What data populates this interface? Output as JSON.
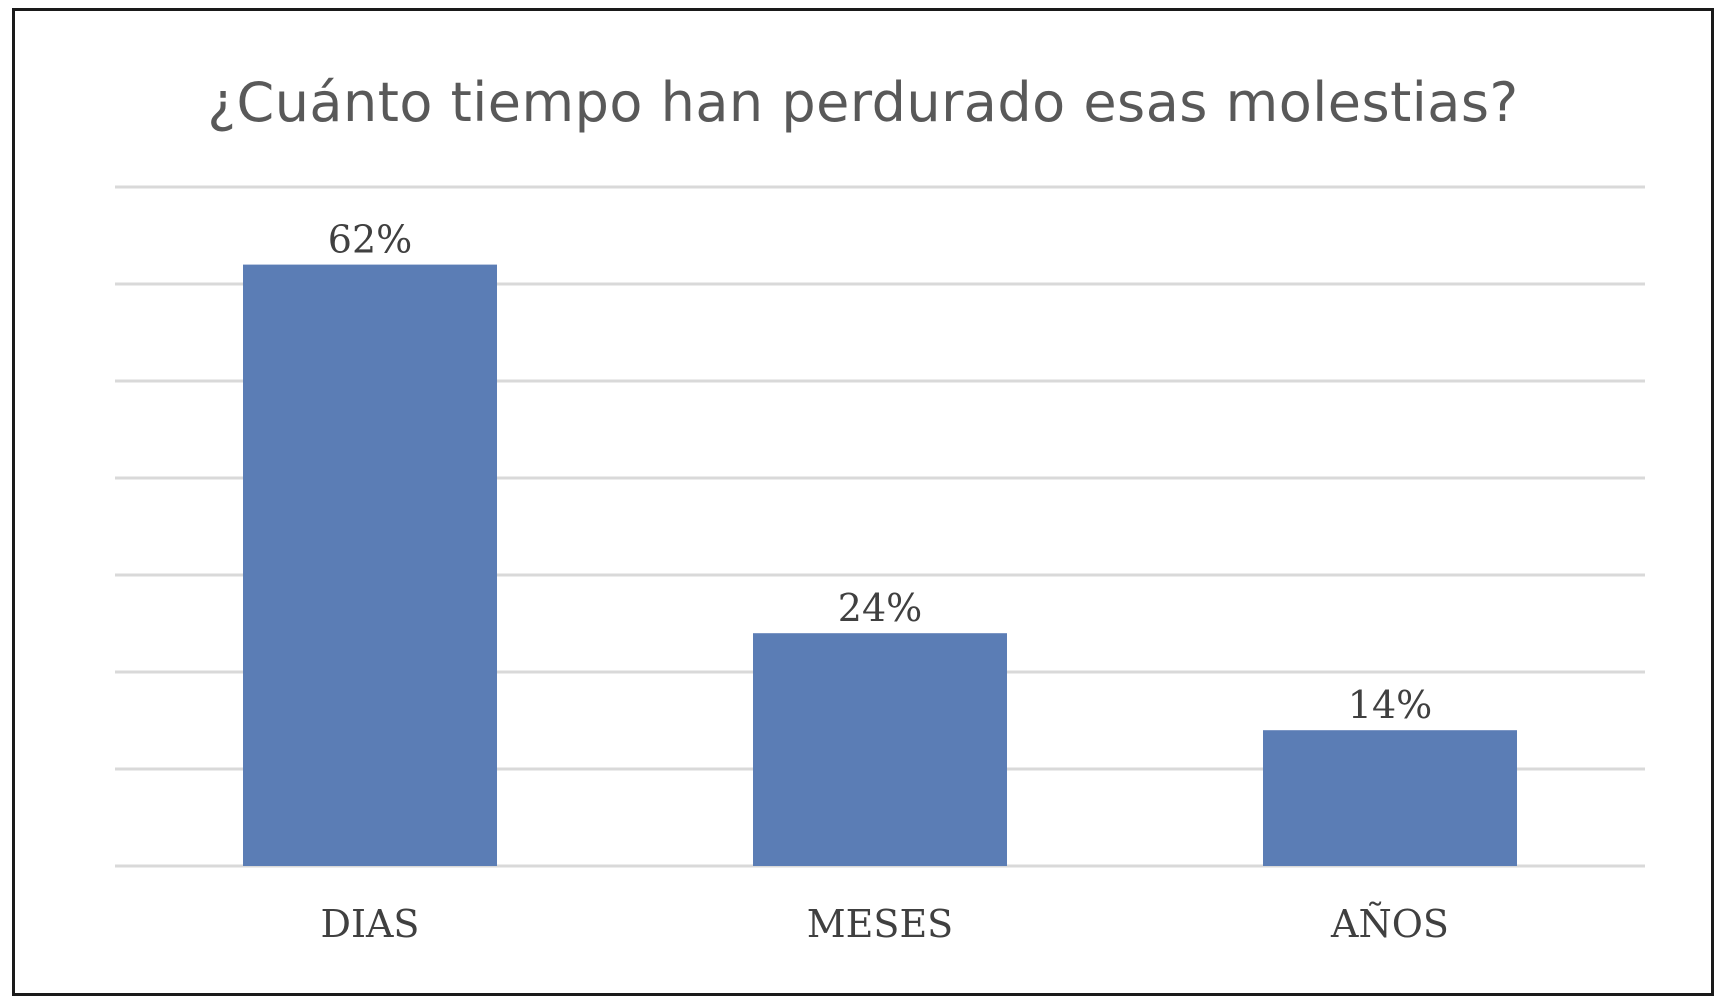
{
  "chart_data": {
    "type": "bar",
    "title": "¿Cuánto tiempo han perdurado esas molestias?",
    "categories": [
      "DIAS",
      "MESES",
      "AÑOS"
    ],
    "values": [
      62,
      24,
      14
    ],
    "value_labels": [
      "62%",
      "24%",
      "14%"
    ],
    "ylim": [
      0,
      70
    ],
    "y_gridline_step": 10,
    "grid": true,
    "legend": "none",
    "bar_color": "#5b7db5"
  }
}
